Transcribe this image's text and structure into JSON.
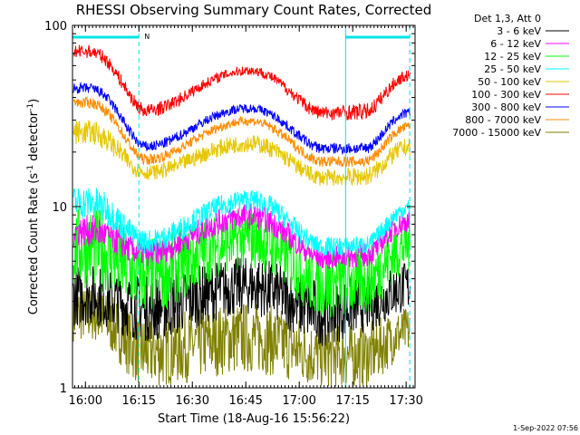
{
  "chart_data": {
    "type": "line",
    "title": "RHESSI Observing Summary Count Rates, Corrected",
    "xlabel": "Start Time (18-Aug-16 15:56:22)",
    "ylabel_main": "Corrected Count Rate (s",
    "ylabel_sup1": "-1",
    "ylabel_mid": " detector",
    "ylabel_sup2": "-1",
    "ylabel_end": ")",
    "y_scale": "log",
    "ylim": [
      1,
      100
    ],
    "xlim": [
      "15:56:22",
      "17:32:30"
    ],
    "x_ticks": [
      "16:00",
      "16:15",
      "16:30",
      "16:45",
      "17:00",
      "17:15",
      "17:30"
    ],
    "y_ticks": [
      "1",
      "10",
      "100"
    ],
    "legend": {
      "header": "Det 1,3, Att 0",
      "placement": "right"
    },
    "night_marker_label": "N",
    "night_intervals": [
      [
        "15:56:22",
        "16:15"
      ],
      [
        "17:13",
        "17:31"
      ]
    ],
    "saa_lines": [
      "16:15",
      "17:13",
      "17:31"
    ],
    "timestamp": "1-Sep-2022 07:56",
    "series": [
      {
        "name": "3 - 6 keV",
        "color": "#000000",
        "min": [
          2.2,
          1.8,
          2.5,
          1.7,
          2.0,
          2.6
        ],
        "max": [
          4.8,
          4.2,
          5.3,
          4.0,
          4.1,
          5.0
        ]
      },
      {
        "name": "6 - 12 keV",
        "color": "#ff00ff",
        "min": [
          6.0,
          4.7,
          7.5,
          4.5,
          4.6,
          7.2
        ],
        "max": [
          9.0,
          6.5,
          10.5,
          6.0,
          6.3,
          9.5
        ]
      },
      {
        "name": "12 - 25 keV",
        "color": "#00ff00",
        "min": [
          3.5,
          2.5,
          4.5,
          2.4,
          2.5,
          4.2
        ],
        "max": [
          10.0,
          6.8,
          9.8,
          5.8,
          6.0,
          9.0
        ]
      },
      {
        "name": "25 - 50 keV",
        "color": "#00ffff",
        "min": [
          8.5,
          5.5,
          9.5,
          5.3,
          5.4,
          8.8
        ],
        "max": [
          13.0,
          7.5,
          12.5,
          6.8,
          6.9,
          11.0
        ]
      },
      {
        "name": "50 - 100 keV",
        "color": "#e6c800",
        "min": [
          22.0,
          14.0,
          20.0,
          13.0,
          13.0,
          19.0
        ],
        "max": [
          30.0,
          17.0,
          25.0,
          16.0,
          16.5,
          24.0
        ]
      },
      {
        "name": "100 - 300 keV",
        "color": "#ff0000",
        "min": [
          66.0,
          31.0,
          53.0,
          30.0,
          30.0,
          49.0
        ],
        "max": [
          78.0,
          37.0,
          60.0,
          36.0,
          37.0,
          57.0
        ]
      },
      {
        "name": "300 - 800 keV",
        "color": "#0000ff",
        "min": [
          42.0,
          20.0,
          33.0,
          19.5,
          19.5,
          31.0
        ],
        "max": [
          48.0,
          23.0,
          37.0,
          22.5,
          22.5,
          35.0
        ]
      },
      {
        "name": "800 - 7000 keV",
        "color": "#ff8c00",
        "min": [
          35.0,
          17.0,
          28.0,
          16.5,
          16.5,
          26.0
        ],
        "max": [
          40.0,
          19.5,
          31.5,
          19.0,
          19.0,
          29.5
        ]
      },
      {
        "name": "7000 - 15000 keV",
        "color": "#808000",
        "min": [
          1.8,
          1.0,
          1.2,
          1.0,
          1.0,
          1.5
        ],
        "max": [
          3.6,
          2.5,
          3.0,
          2.3,
          2.3,
          2.8
        ]
      }
    ]
  }
}
